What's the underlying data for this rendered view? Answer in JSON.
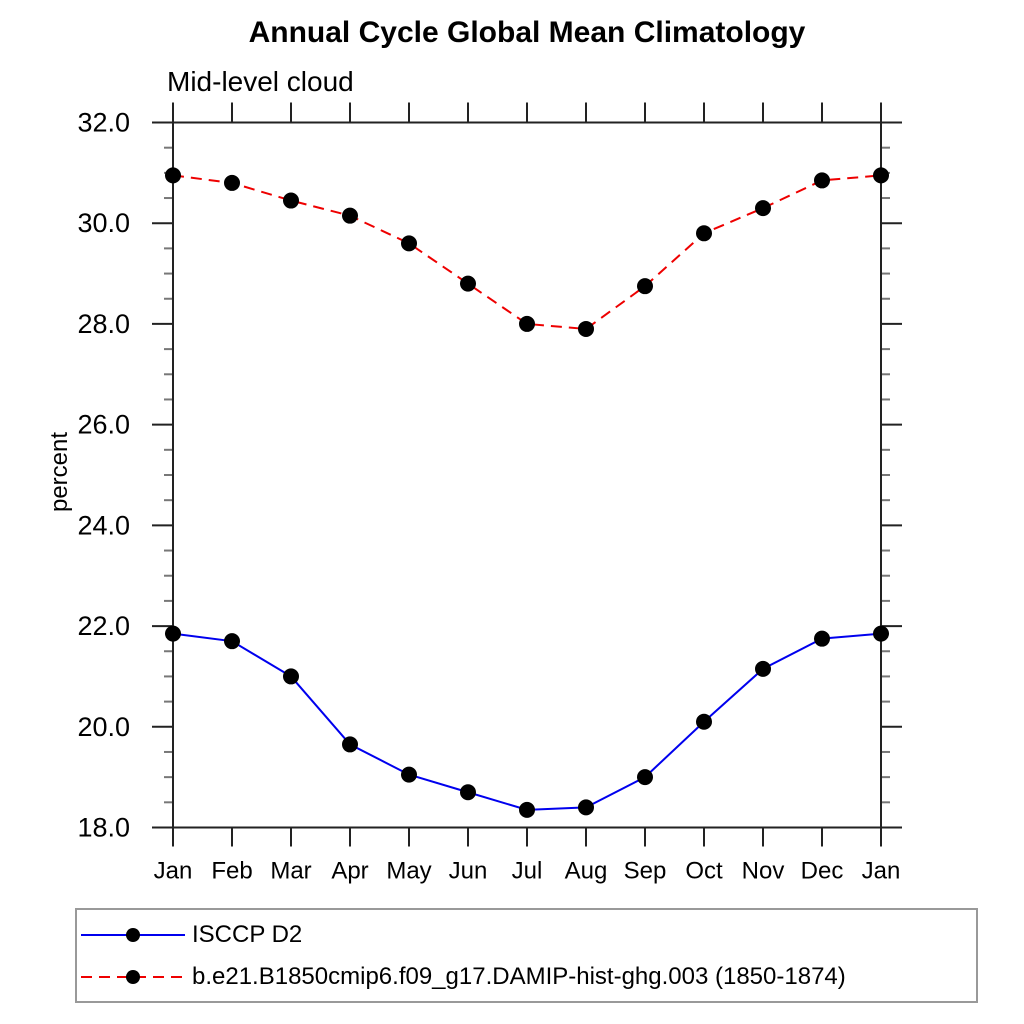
{
  "title": "Annual Cycle Global Mean Climatology",
  "subtitle": "Mid-level cloud",
  "chart_data": {
    "type": "line",
    "title": "Annual Cycle Global Mean Climatology",
    "subtitle": "Mid-level cloud",
    "xlabel": "",
    "ylabel": "percent",
    "ylim": [
      18.0,
      32.0
    ],
    "ytick_major_step": 2.0,
    "ytick_minor_step": 0.5,
    "ytick_label_format": "one_decimal",
    "grid": false,
    "legend_position": "bottom-left-boxed",
    "categories": [
      "Jan",
      "Feb",
      "Mar",
      "Apr",
      "May",
      "Jun",
      "Jul",
      "Aug",
      "Sep",
      "Oct",
      "Nov",
      "Dec",
      "Jan"
    ],
    "series": [
      {
        "name": "ISCCP D2",
        "line_style": "solid",
        "line_color": "#0000ee",
        "marker": "filled-circle",
        "marker_color": "#000000",
        "values": [
          21.85,
          21.7,
          21.0,
          19.65,
          19.05,
          18.7,
          18.35,
          18.4,
          19.0,
          20.1,
          21.15,
          21.75,
          21.85
        ]
      },
      {
        "name": "b.e21.B1850cmip6.f09_g17.DAMIP-hist-ghg.003 (1850-1874)",
        "line_style": "dashed",
        "line_color": "#ee0000",
        "marker": "filled-circle",
        "marker_color": "#000000",
        "values": [
          30.95,
          30.8,
          30.45,
          30.15,
          29.6,
          28.8,
          28.0,
          27.9,
          28.75,
          29.8,
          30.3,
          30.85,
          30.95
        ]
      }
    ]
  },
  "colors": {
    "axis": "#222222",
    "minor_tick": "#777777",
    "legend_border": "#999999",
    "text": "#000000",
    "background": "#ffffff"
  }
}
